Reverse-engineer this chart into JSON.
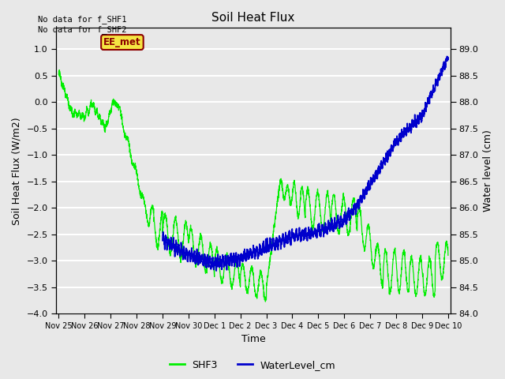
{
  "title": "Soil Heat Flux",
  "xlabel": "Time",
  "ylabel_left": "Soil Heat Flux (W/m2)",
  "ylabel_right": "Water level (cm)",
  "annotation_text": "No data for f_SHF1\nNo data for f_SHF2",
  "box_label": "EE_met",
  "ylim_left": [
    -4.0,
    1.4
  ],
  "ylim_right": [
    84.0,
    89.4
  ],
  "yticks_left": [
    -4.0,
    -3.5,
    -3.0,
    -2.5,
    -2.0,
    -1.5,
    -1.0,
    -0.5,
    0.0,
    0.5,
    1.0
  ],
  "yticks_right": [
    84.0,
    84.5,
    85.0,
    85.5,
    86.0,
    86.5,
    87.0,
    87.5,
    88.0,
    88.5,
    89.0
  ],
  "xtick_labels": [
    "Nov 25",
    "Nov 26",
    "Nov 27",
    "Nov 28",
    "Nov 29",
    "Nov 30",
    "Dec 1",
    "Dec 2",
    "Dec 3",
    "Dec 4",
    "Dec 5",
    "Dec 6",
    "Dec 7",
    "Dec 8",
    "Dec 9",
    "Dec 10"
  ],
  "background_color": "#e8e8e8",
  "plot_bg_color": "#e8e8e8",
  "shf3_color": "#00ee00",
  "water_color": "#0000cc",
  "grid_color": "#ffffff",
  "legend_shf3": "SHF3",
  "legend_water": "WaterLevel_cm",
  "figwidth": 6.4,
  "figheight": 4.8,
  "dpi": 100
}
